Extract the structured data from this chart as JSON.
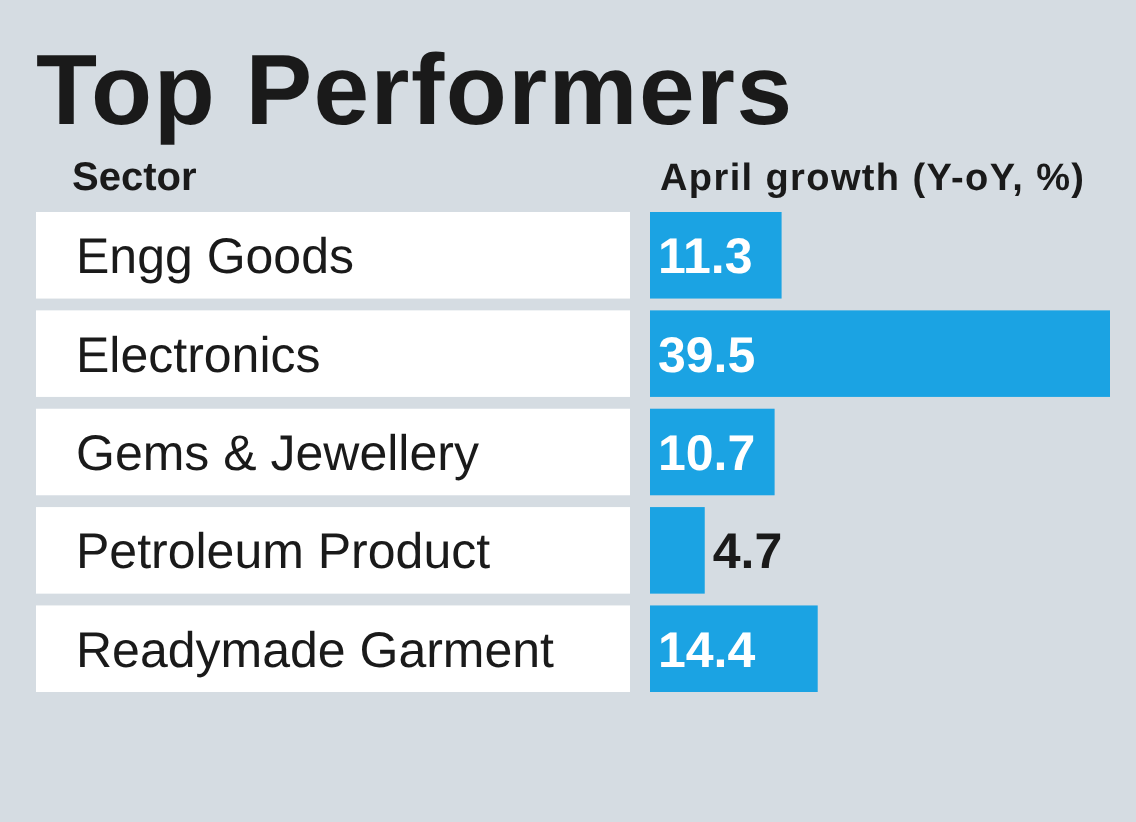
{
  "chart_data": {
    "type": "bar",
    "orientation": "horizontal",
    "title": "Top Performers",
    "xlabel": "April growth (Y-oY, %)",
    "annotations": [
      "Sector"
    ],
    "categories": [
      "Engg Goods",
      "Electronics",
      "Gems & Jewellery",
      "Petroleum Product",
      "Readymade Garment"
    ],
    "values": [
      11.3,
      39.5,
      10.7,
      4.7,
      14.4
    ],
    "color": "#1ba3e3",
    "data_labels": true
  }
}
